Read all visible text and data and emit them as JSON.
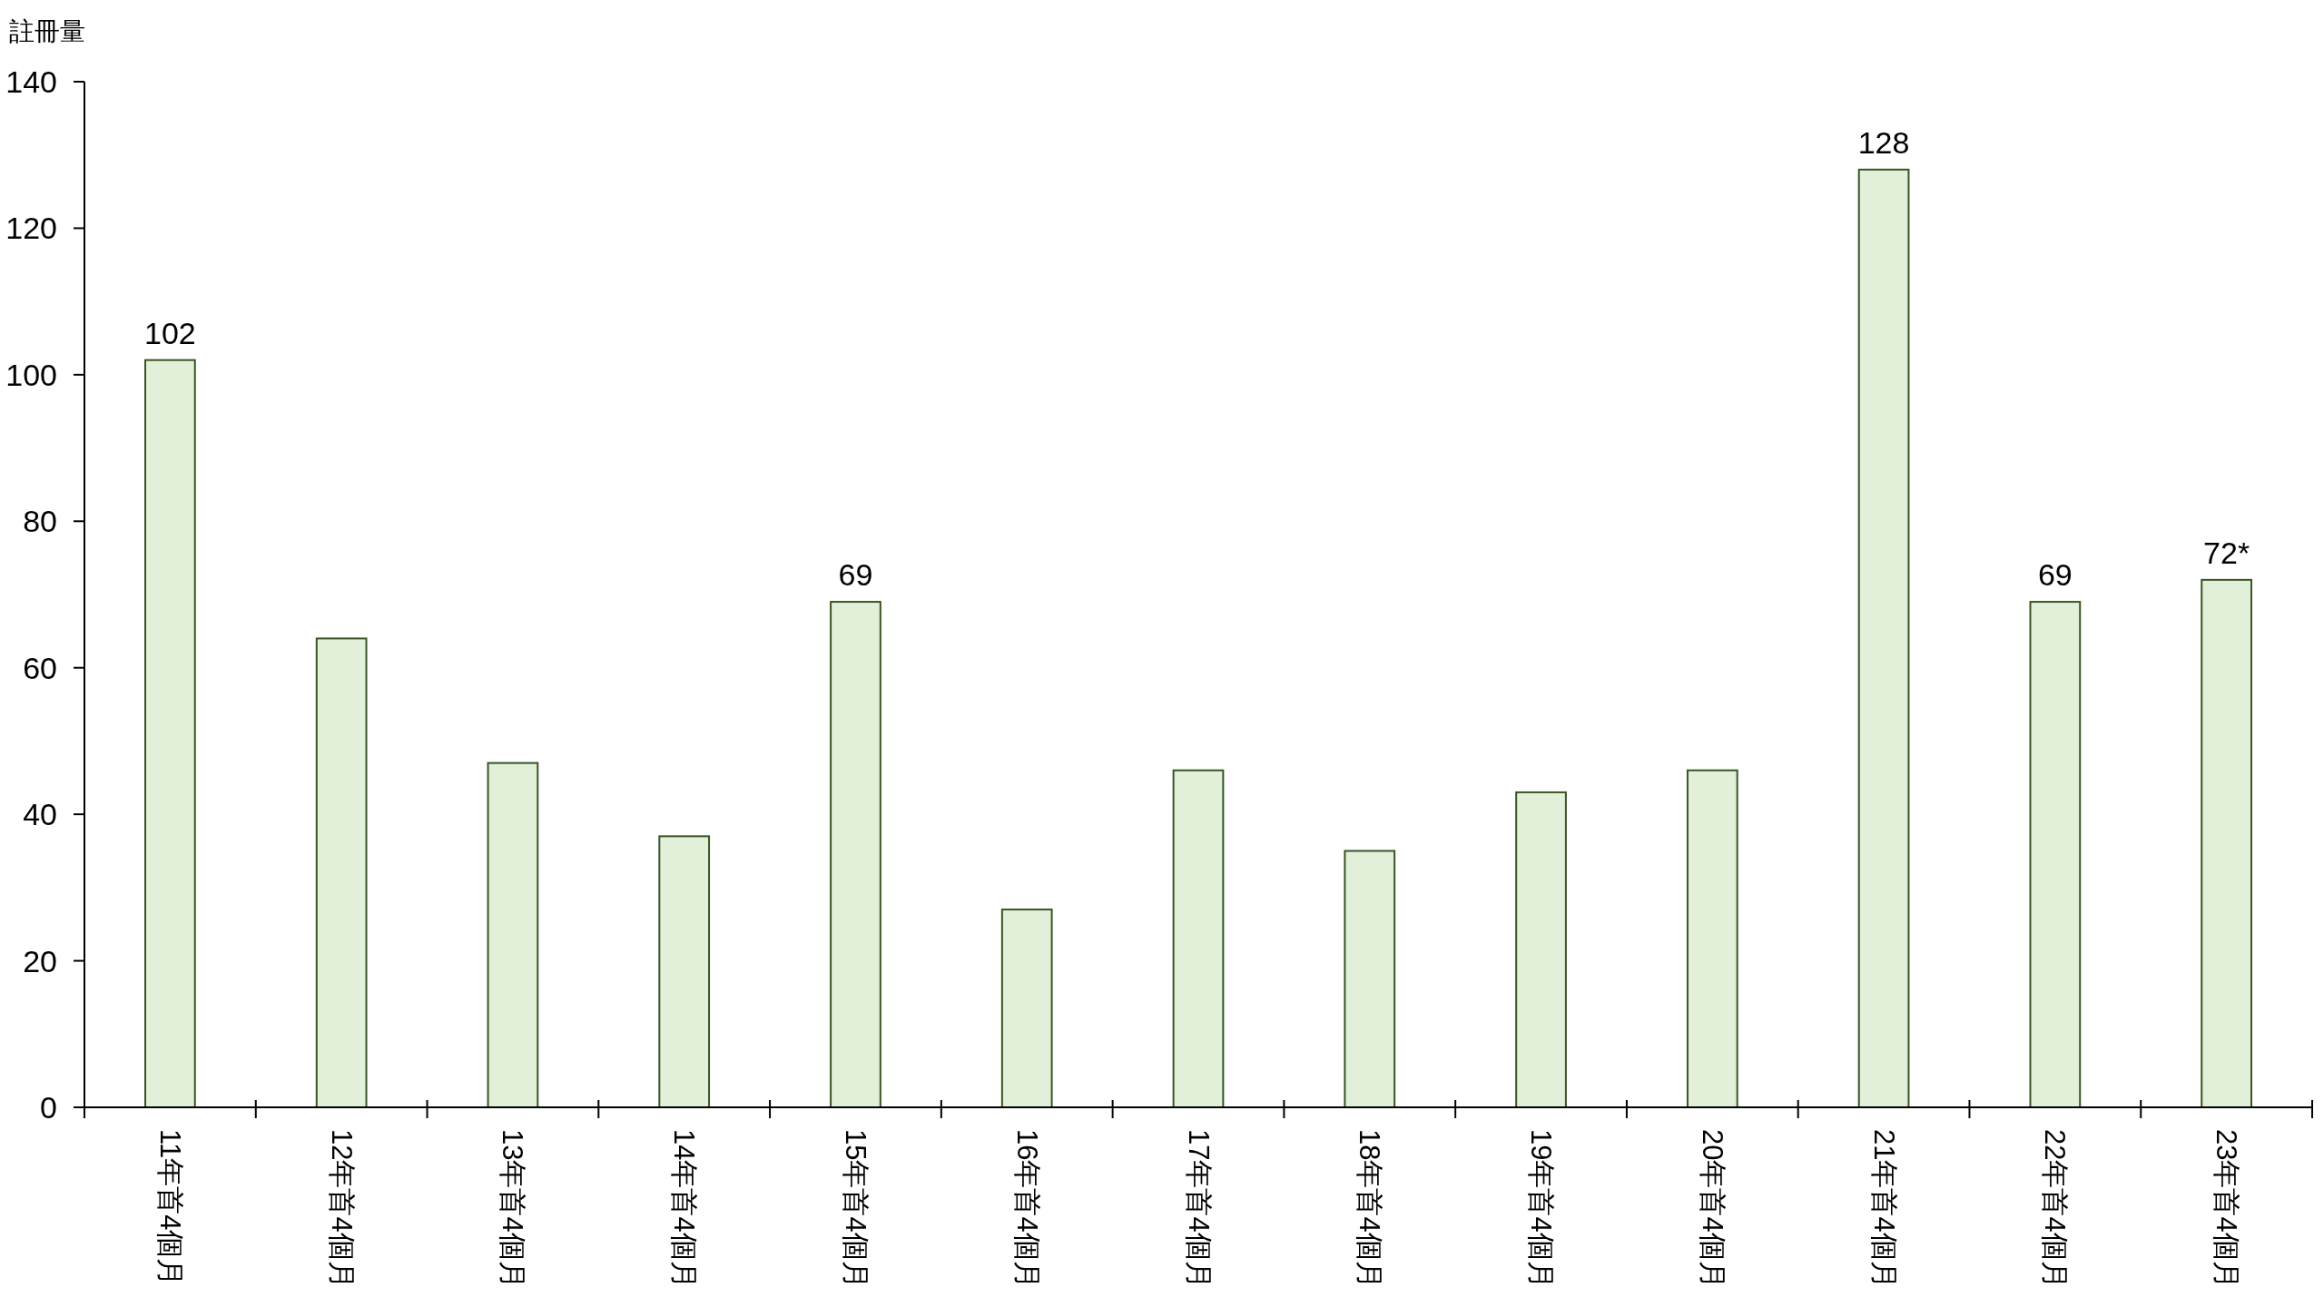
{
  "chart_data": {
    "type": "bar",
    "ylabel": "註冊量",
    "categories": [
      "11年首4個月",
      "12年首4個月",
      "13年首4個月",
      "14年首4個月",
      "15年首4個月",
      "16年首4個月",
      "17年首4個月",
      "18年首4個月",
      "19年首4個月",
      "20年首4個月",
      "21年首4個月",
      "22年首4個月",
      "23年首4個月"
    ],
    "values": [
      102,
      64,
      47,
      37,
      69,
      27,
      46,
      35,
      43,
      46,
      128,
      69,
      72
    ],
    "color": "#e2efd9",
    "value_labels": [
      "102",
      null,
      null,
      null,
      "69",
      null,
      null,
      null,
      null,
      null,
      "128",
      "69",
      "72*"
    ],
    "ylim": [
      0,
      140
    ],
    "yticks": [
      0,
      20,
      40,
      60,
      80,
      100,
      120,
      140
    ],
    "grid": false
  }
}
